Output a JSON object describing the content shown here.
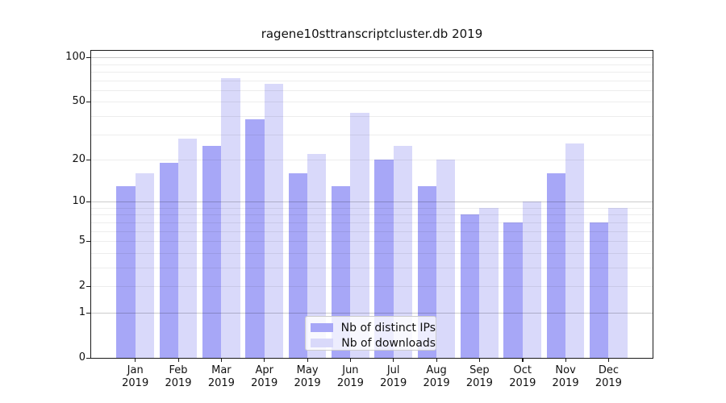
{
  "title": "ragene10sttranscriptcluster.db 2019",
  "chart_data": {
    "type": "bar",
    "title": "ragene10sttranscriptcluster.db 2019",
    "categories": [
      "Jan",
      "Feb",
      "Mar",
      "Apr",
      "May",
      "Jun",
      "Jul",
      "Aug",
      "Sep",
      "Oct",
      "Nov",
      "Dec"
    ],
    "category_year": "2019",
    "series": [
      {
        "name": "Nb of distinct IPs",
        "color": "#a7a7f7",
        "values": [
          13,
          19,
          25,
          38,
          16,
          13,
          20,
          13,
          8,
          7,
          16,
          7
        ]
      },
      {
        "name": "Nb of downloads",
        "color": "#d9d9fa",
        "values": [
          16,
          28,
          72,
          66,
          22,
          42,
          25,
          20,
          9,
          10,
          26,
          9
        ]
      }
    ],
    "xlabel": "",
    "ylabel": "",
    "yscale": "log10(value+1)",
    "ylim": [
      0,
      110.6
    ],
    "yticks": [
      100,
      50,
      20,
      10,
      5,
      2,
      1,
      0
    ],
    "minor_gridlines": [
      2,
      3,
      4,
      5,
      6,
      7,
      8,
      9,
      20,
      30,
      40,
      50,
      60,
      70,
      80,
      90
    ],
    "major_gridlines": [
      1,
      10,
      100
    ],
    "grid": true,
    "legend": {
      "position": "lower-center-inside",
      "entries": [
        "Nb of distinct IPs",
        "Nb of downloads"
      ]
    },
    "colors": {
      "axis": "#1a1a1a",
      "background": "#ffffff",
      "minor_grid": "#ececec",
      "major_grid": "#cccccc"
    }
  }
}
